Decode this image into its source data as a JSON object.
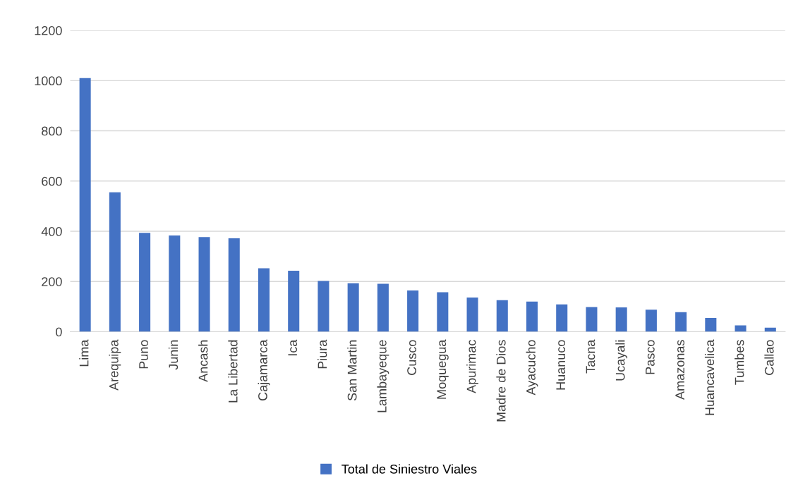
{
  "chart_data": {
    "type": "bar",
    "categories": [
      "Lima",
      "Arequipa",
      "Puno",
      "Junin",
      "Ancash",
      "La Libertad",
      "Cajamarca",
      "Ica",
      "Piura",
      "San Martin",
      "Lambayeque",
      "Cusco",
      "Moquegua",
      "Apurimac",
      "Madre de Dios",
      "Ayacucho",
      "Huanuco",
      "Tacna",
      "Ucayali",
      "Pasco",
      "Amazonas",
      "Huancavelica",
      "Tumbes",
      "Callao"
    ],
    "series": [
      {
        "name": "Total de Siniestro Viales",
        "color": "#4472c4",
        "values": [
          1010,
          555,
          394,
          383,
          377,
          372,
          253,
          243,
          202,
          193,
          191,
          164,
          157,
          136,
          126,
          120,
          109,
          98,
          97,
          88,
          78,
          55,
          25,
          16
        ]
      }
    ],
    "ylim": [
      0,
      1200
    ],
    "yticks": [
      0,
      200,
      400,
      600,
      800,
      1000,
      1200
    ],
    "grid": "y",
    "legend": "bottom"
  }
}
